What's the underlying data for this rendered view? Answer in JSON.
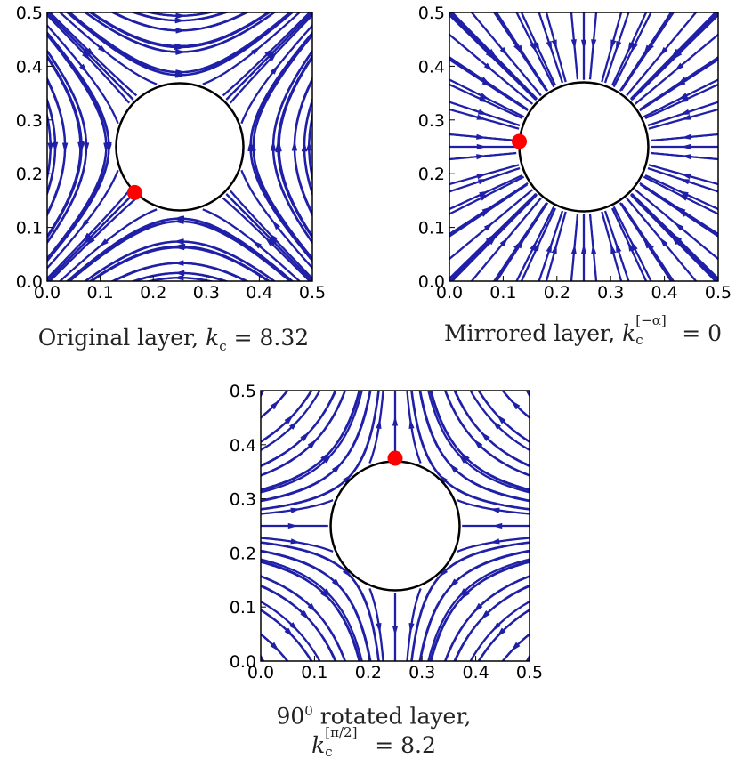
{
  "chart_data": [
    {
      "type": "streamplot",
      "panel": "original",
      "caption": {
        "text": "Original layer, ",
        "k": "k",
        "sub": "c",
        "sup": "",
        "value": "= 8.32"
      },
      "xlim": [
        0.0,
        0.5
      ],
      "ylim": [
        0.0,
        0.5
      ],
      "xticks": [
        "0.0",
        "0.1",
        "0.2",
        "0.3",
        "0.4",
        "0.5"
      ],
      "yticks": [
        "0.0",
        "0.1",
        "0.2",
        "0.3",
        "0.4",
        "0.5"
      ],
      "inclusion": {
        "cx": 0.25,
        "cy": 0.25,
        "r": 0.12
      },
      "marker": {
        "x": 0.165,
        "y": 0.165,
        "color": "#ff0000"
      },
      "stream_color": "#1f1fa8",
      "field": "hyperbolic-diagonal"
    },
    {
      "type": "streamplot",
      "panel": "mirrored",
      "caption": {
        "text": "Mirrored layer, ",
        "k": "k",
        "sub": "c",
        "sup": "[−α]",
        "value": "= 0"
      },
      "xlim": [
        0.0,
        0.5
      ],
      "ylim": [
        0.0,
        0.5
      ],
      "xticks": [
        "0.0",
        "0.1",
        "0.2",
        "0.3",
        "0.4",
        "0.5"
      ],
      "yticks": [
        "0.0",
        "0.1",
        "0.2",
        "0.3",
        "0.4",
        "0.5"
      ],
      "inclusion": {
        "cx": 0.25,
        "cy": 0.25,
        "r": 0.12
      },
      "marker": {
        "x": 0.13,
        "y": 0.26,
        "color": "#ff0000"
      },
      "stream_color": "#1f1fa8",
      "field": "radial-inward"
    },
    {
      "type": "streamplot",
      "panel": "rotated",
      "caption": {
        "line1": "90",
        "line1_sup": "0",
        "line1_rest": " rotated layer,",
        "k": "k",
        "sub": "c",
        "sup": "[π/2]",
        "value": "= 8.2"
      },
      "xlim": [
        0.0,
        0.5
      ],
      "ylim": [
        0.0,
        0.5
      ],
      "xticks": [
        "0.0",
        "0.1",
        "0.2",
        "0.3",
        "0.4",
        "0.5"
      ],
      "yticks": [
        "0.0",
        "0.1",
        "0.2",
        "0.3",
        "0.4",
        "0.5"
      ],
      "inclusion": {
        "cx": 0.25,
        "cy": 0.25,
        "r": 0.12
      },
      "marker": {
        "x": 0.25,
        "y": 0.375,
        "color": "#ff0000"
      },
      "stream_color": "#1f1fa8",
      "field": "hyperbolic-axis"
    }
  ]
}
